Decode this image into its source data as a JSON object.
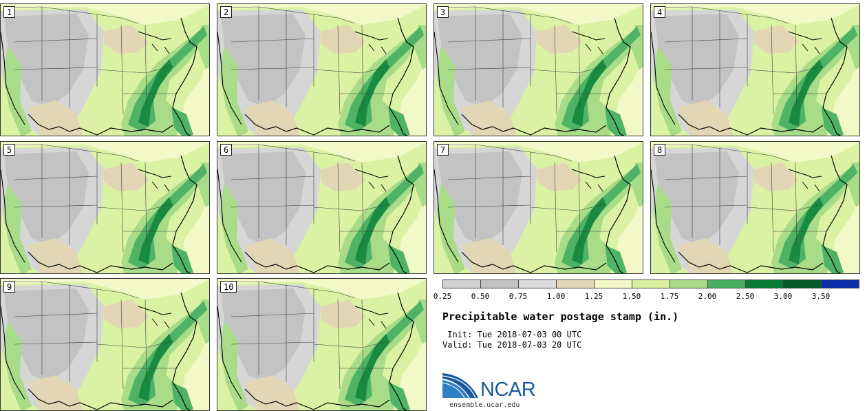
{
  "title": "Precipitable water postage stamp (in.)",
  "init": " Init: Tue 2018-07-03 00 UTC",
  "valid": "Valid: Tue 2018-07-03 20 UTC",
  "logo": {
    "text": "NCAR",
    "site": "ensemble.ucar.edu",
    "icon": "ncar-swoosh-logo"
  },
  "members": [
    "1",
    "2",
    "3",
    "4",
    "5",
    "6",
    "7",
    "8",
    "9",
    "10"
  ],
  "legend": {
    "ticks": [
      "0.25",
      "0.50",
      "0.75",
      "1.00",
      "1.25",
      "1.50",
      "1.75",
      "2.00",
      "2.50",
      "3.00",
      "3.50"
    ],
    "colors": [
      "#d2d2d2",
      "#c2c2c2",
      "#dcdcdc",
      "#e2d6b4",
      "#f4f8c8",
      "#d8f0a0",
      "#a8dc88",
      "#48b060",
      "#077e34",
      "#045a2a",
      "#0a2ea8"
    ]
  },
  "map_colors": {
    "water": "#f3f8c8",
    "gray_dark": "#c3c3c3",
    "gray_light": "#d6d6d6",
    "tan": "#e2d6b4",
    "light_green": "#dbf2a4",
    "mid_green": "#a8dc88",
    "green": "#4fb366",
    "dark_green": "#1a8a40"
  }
}
